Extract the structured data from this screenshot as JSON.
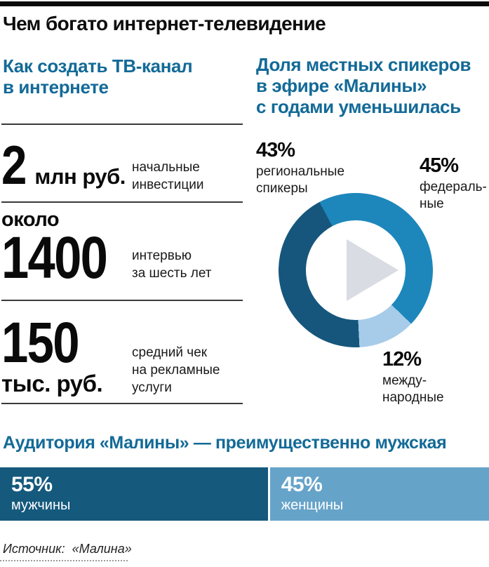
{
  "header": {
    "title": "Чем богато интернет-телевидение"
  },
  "left_section": {
    "heading": "Как создать ТВ-канал\nв интернете",
    "stats": [
      {
        "value": "2",
        "unit": "млн руб.",
        "description": "начальные\nинвестиции"
      },
      {
        "prefix": "около",
        "value": "1400",
        "description": "интервью\nза шесть лет"
      },
      {
        "value": "150",
        "unit": "тыс. руб.",
        "description": "средний чек\nна рекламные\nуслуги"
      }
    ]
  },
  "chart_data": [
    {
      "type": "pie",
      "donut": true,
      "title": "Доля местных спикеров\nв эфире «Малины»\nс годами уменьшилась",
      "start_angle_deg": -28,
      "center_icon": "play-icon",
      "legend_position": "around",
      "slices": [
        {
          "label": "федеральные",
          "pct_label": "45%",
          "display_label": "федераль-\nные",
          "value": 45,
          "color": "#1d87bb"
        },
        {
          "label": "международные",
          "pct_label": "12%",
          "display_label": "между-\nнародные",
          "value": 12,
          "color": "#a6cce9"
        },
        {
          "label": "региональные спикеры",
          "pct_label": "43%",
          "display_label": "региональные\nспикеры",
          "value": 43,
          "color": "#16567c"
        }
      ]
    },
    {
      "type": "bar",
      "orientation": "horizontal-stacked",
      "title": "Аудитория «Малины» — преимущественно мужская",
      "categories": [
        "мужчины",
        "женщины"
      ],
      "values": [
        55,
        45
      ],
      "value_labels": [
        "55%",
        "45%"
      ],
      "colors": [
        "#15597d",
        "#66a3c9"
      ],
      "xlim": [
        0,
        100
      ]
    }
  ],
  "footer": {
    "source_label": "Источник:",
    "source_value": "«Малина»"
  }
}
